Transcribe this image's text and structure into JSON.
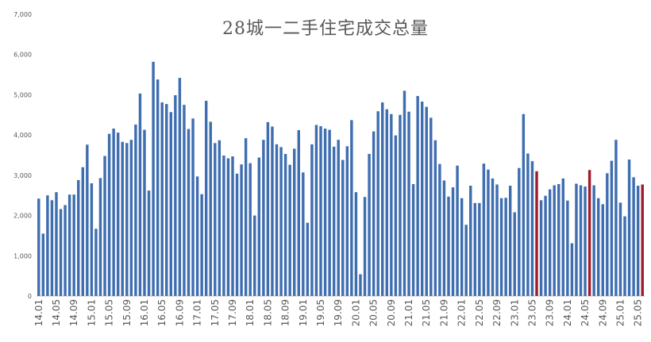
{
  "chart_data": {
    "type": "bar",
    "title": "28城一二手住宅成交总量",
    "ylim": [
      0,
      7000
    ],
    "yticks": [
      "0",
      "1,000",
      "2,000",
      "3,000",
      "4,000",
      "5,000",
      "6,000",
      "7,000"
    ],
    "xtick_labels": [
      "14.01",
      "14.05",
      "14.09",
      "15.01",
      "15.05",
      "15.09",
      "16.01",
      "16.05",
      "16.09",
      "17.01",
      "17.05",
      "17.09",
      "18.01",
      "18.05",
      "18.09",
      "19.01",
      "19.05",
      "19.09",
      "20.01",
      "20.05",
      "20.09",
      "21.01",
      "21.05",
      "21.09",
      "22.01",
      "22.05",
      "22.09",
      "23.01",
      "23.05",
      "23.09",
      "24.01",
      "24.05",
      "24.09",
      "25.01",
      "25.05"
    ],
    "colors": {
      "normal": "#3f6eb0",
      "highlight": "#a01c2c",
      "axis": "#bfbfbf",
      "text": "#595959"
    },
    "values": [
      2420,
      1550,
      2500,
      2380,
      2580,
      2160,
      2260,
      2520,
      2520,
      2880,
      3200,
      3760,
      2800,
      1670,
      2930,
      3480,
      4030,
      4160,
      4060,
      3830,
      3800,
      3880,
      4260,
      5030,
      4130,
      2620,
      5820,
      5380,
      4810,
      4770,
      4570,
      4990,
      5420,
      4750,
      4150,
      4410,
      2970,
      2530,
      4850,
      4330,
      3800,
      3870,
      3490,
      3420,
      3470,
      3040,
      3270,
      3920,
      3300,
      2000,
      3440,
      3880,
      4320,
      4210,
      3770,
      3700,
      3530,
      3260,
      3660,
      4120,
      3070,
      1820,
      3770,
      4250,
      4220,
      4160,
      4130,
      3710,
      3880,
      3380,
      3720,
      4370,
      2580,
      540,
      2460,
      3530,
      4090,
      4590,
      4810,
      4640,
      4520,
      3990,
      4500,
      5100,
      4580,
      2780,
      4970,
      4830,
      4700,
      4430,
      3870,
      3280,
      2870,
      2470,
      2700,
      3240,
      2430,
      1770,
      2740,
      2310,
      2310,
      3290,
      3140,
      2920,
      2770,
      2430,
      2440,
      2740,
      2080,
      3180,
      4520,
      3540,
      3350,
      3100,
      2380,
      2490,
      2650,
      2750,
      2780,
      2920,
      2370,
      1310,
      2790,
      2750,
      2720,
      3130,
      2750,
      2430,
      2280,
      3050,
      3360,
      3880,
      2320,
      1980,
      3390,
      2950,
      2740,
      2770
    ],
    "highlight_indices": [
      113,
      125,
      137
    ]
  }
}
